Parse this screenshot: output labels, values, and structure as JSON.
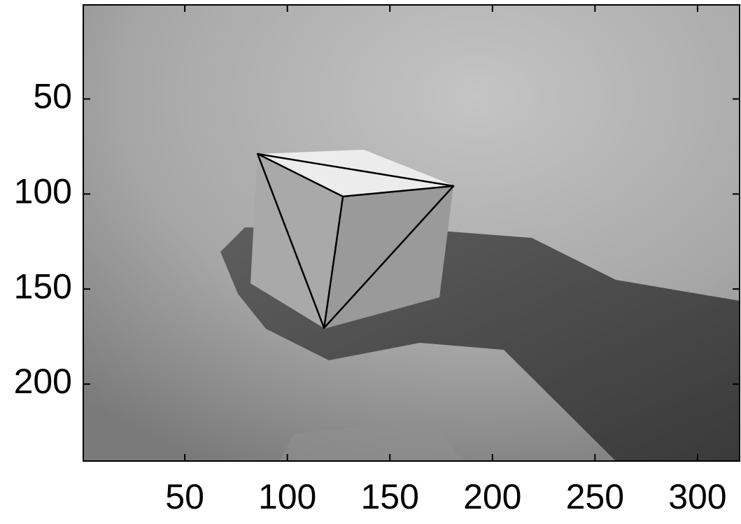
{
  "chart_data": {
    "type": "image",
    "xlim": [
      0.5,
      320.5
    ],
    "ylim": [
      0.5,
      240.5
    ],
    "y_reversed": true,
    "xticks": [
      50,
      100,
      150,
      200,
      250,
      300
    ],
    "yticks": [
      50,
      100,
      150,
      200
    ],
    "series": [
      {
        "color": "#000000",
        "x": [
          85.5,
          127.1,
          181.0,
          85.5,
          117.9,
          127.1,
          null,
          117.9,
          181.0
        ],
        "y": [
          78.9,
          101.3,
          95.8,
          78.9,
          170.5,
          101.3,
          null,
          170.5,
          95.8
        ]
      }
    ]
  }
}
